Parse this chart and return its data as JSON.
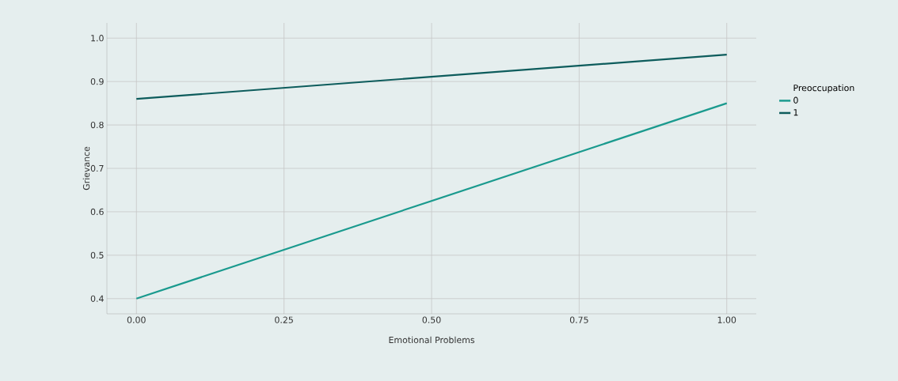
{
  "chart_data": {
    "type": "line",
    "xlabel": "Emotional Problems",
    "ylabel": "Grievance",
    "legend_title": "Preoccupation",
    "x": [
      0,
      1
    ],
    "series": [
      {
        "name": "0",
        "color": "#1a9a8e",
        "values": [
          0.4,
          0.85
        ]
      },
      {
        "name": "1",
        "color": "#0d5c5c",
        "values": [
          0.86,
          0.962
        ]
      }
    ],
    "xlim": [
      -0.05,
      1.05
    ],
    "ylim": [
      0.365,
      1.035
    ],
    "xticks": [
      {
        "value": 0,
        "label": "0.00"
      },
      {
        "value": 0.25,
        "label": "0.25"
      },
      {
        "value": 0.5,
        "label": "0.50"
      },
      {
        "value": 0.75,
        "label": "0.75"
      },
      {
        "value": 1,
        "label": "1.00"
      }
    ],
    "yticks": [
      {
        "value": 0.4,
        "label": "0.4"
      },
      {
        "value": 0.5,
        "label": "0.5"
      },
      {
        "value": 0.6,
        "label": "0.6"
      },
      {
        "value": 0.7,
        "label": "0.7"
      },
      {
        "value": 0.8,
        "label": "0.8"
      },
      {
        "value": 0.9,
        "label": "0.9"
      },
      {
        "value": 1.0,
        "label": "1.0"
      }
    ],
    "grid": true,
    "legend": "right",
    "marker": "none",
    "line_style": "solid"
  }
}
